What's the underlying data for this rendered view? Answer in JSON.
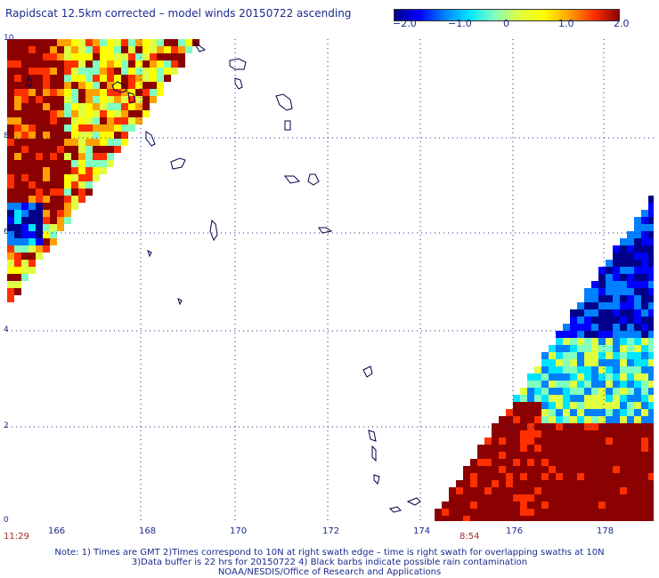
{
  "title": "Rapidscat 12.5km corrected – model winds 20150722 ascending",
  "colorbar": {
    "ticks": [
      "−2.0",
      "−1.0",
      "0",
      "1.0",
      "2.0"
    ],
    "tick_values": [
      -2.0,
      -1.0,
      0,
      1.0,
      2.0
    ],
    "min": -2.0,
    "max": 2.0,
    "colors": [
      "#00008b",
      "#0000ff",
      "#0080ff",
      "#00e5ff",
      "#80ffc0",
      "#e0ff40",
      "#ffff00",
      "#ffa000",
      "#ff3000",
      "#8b0000"
    ]
  },
  "axes": {
    "lat_labels": [
      "10",
      "8",
      "6",
      "4",
      "2",
      "0"
    ],
    "lon_labels": [
      "166",
      "168",
      "170",
      "172",
      "174",
      "176",
      "178"
    ],
    "lat_range": [
      0,
      10
    ],
    "lon_range": [
      164,
      178
    ]
  },
  "times": {
    "left": "11:29",
    "right": "8:54"
  },
  "notes": [
    "Note: 1) Times are GMT 2)Times correspond to 10N at right swath edge – time is right swath for overlapping swaths at 10N",
    "3)Data buffer is 22 hrs for 20150722 4) Black barbs indicate possible rain contamination",
    "NOAA/NESDIS/Office of Research and Applications"
  ]
}
